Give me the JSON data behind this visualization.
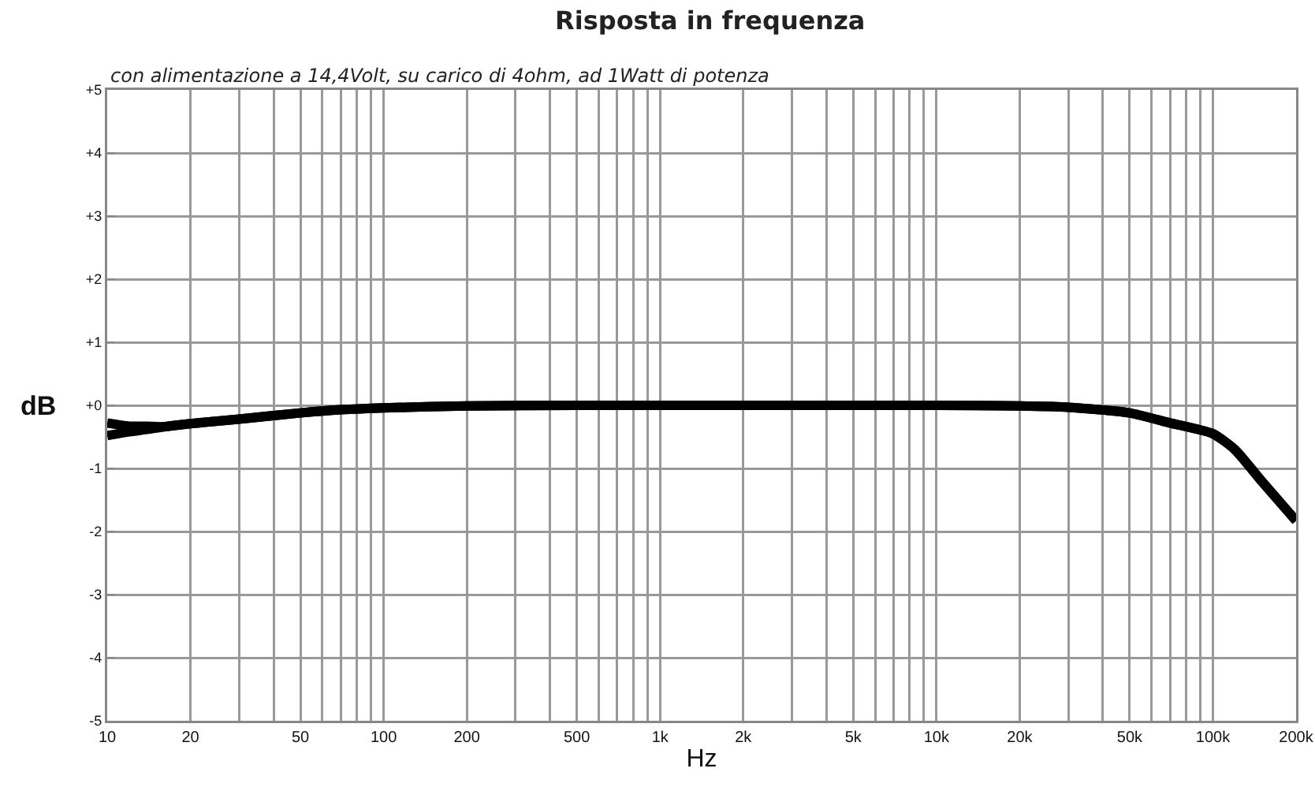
{
  "chart_data": {
    "type": "line",
    "title": "Risposta in frequenza",
    "subtitle": "con alimentazione a 14,4Volt, su carico di 4ohm, ad 1Watt di potenza",
    "xlabel": "Hz",
    "ylabel": "dB",
    "log": "x",
    "grid": true,
    "marker": "none",
    "line_style": "solid",
    "xlim": [
      10,
      200000
    ],
    "ylim": [
      -5,
      5
    ],
    "xticks": [
      10,
      20,
      {
        "value": 30,
        "label": null
      },
      {
        "value": 40,
        "label": null
      },
      50,
      {
        "value": 60,
        "label": null
      },
      {
        "value": 70,
        "label": null
      },
      {
        "value": 80,
        "label": null
      },
      {
        "value": 90,
        "label": null
      },
      100,
      200,
      {
        "value": 300,
        "label": null
      },
      {
        "value": 400,
        "label": null
      },
      500,
      {
        "value": 600,
        "label": null
      },
      {
        "value": 700,
        "label": null
      },
      {
        "value": 800,
        "label": null
      },
      {
        "value": 900,
        "label": null
      },
      {
        "value": 1000,
        "label": "1k"
      },
      {
        "value": 2000,
        "label": "2k"
      },
      {
        "value": 3000,
        "label": null
      },
      {
        "value": 4000,
        "label": null
      },
      {
        "value": 5000,
        "label": "5k"
      },
      {
        "value": 6000,
        "label": null
      },
      {
        "value": 7000,
        "label": null
      },
      {
        "value": 8000,
        "label": null
      },
      {
        "value": 9000,
        "label": null
      },
      {
        "value": 10000,
        "label": "10k"
      },
      {
        "value": 20000,
        "label": "20k"
      },
      {
        "value": 30000,
        "label": null
      },
      {
        "value": 40000,
        "label": null
      },
      {
        "value": 50000,
        "label": "50k"
      },
      {
        "value": 60000,
        "label": null
      },
      {
        "value": 70000,
        "label": null
      },
      {
        "value": 80000,
        "label": null
      },
      {
        "value": 90000,
        "label": null
      },
      {
        "value": 100000,
        "label": "100k"
      },
      {
        "value": 200000,
        "label": "200k"
      }
    ],
    "yticks": [
      {
        "value": -5,
        "label": "-5"
      },
      {
        "value": -4,
        "label": "-4"
      },
      {
        "value": -3,
        "label": "-3"
      },
      {
        "value": -2,
        "label": "-2"
      },
      {
        "value": -1,
        "label": "-1"
      },
      {
        "value": 0,
        "label": "+0"
      },
      {
        "value": 1,
        "label": "+1"
      },
      {
        "value": 2,
        "label": "+2"
      },
      {
        "value": 3,
        "label": "+3"
      },
      {
        "value": 4,
        "label": "+4"
      },
      {
        "value": 5,
        "label": "+5"
      }
    ],
    "series": [
      {
        "color": "#000000",
        "x": [
          10,
          12,
          14,
          16,
          20,
          30,
          50,
          70,
          100,
          200,
          500,
          1000,
          5000,
          10000,
          20000,
          30000,
          50000,
          70000,
          100000,
          120000,
          150000,
          200000
        ],
        "values": [
          -0.28,
          -0.33,
          -0.33,
          -0.34,
          -0.29,
          -0.22,
          -0.12,
          -0.07,
          -0.04,
          -0.01,
          0,
          0,
          0,
          0,
          -0.01,
          -0.03,
          -0.12,
          -0.28,
          -0.45,
          -0.7,
          -1.2,
          -1.83
        ]
      },
      {
        "color": "#000000",
        "x": [
          10,
          12,
          14,
          16,
          20,
          30,
          50,
          70,
          100,
          200,
          500,
          1000,
          5000,
          10000,
          20000,
          30000,
          50000,
          70000,
          100000,
          120000,
          150000,
          200000
        ],
        "values": [
          -0.48,
          -0.42,
          -0.38,
          -0.34,
          -0.29,
          -0.22,
          -0.12,
          -0.07,
          -0.04,
          -0.01,
          0,
          0,
          0,
          0,
          -0.01,
          -0.03,
          -0.12,
          -0.28,
          -0.45,
          -0.7,
          -1.2,
          -1.83
        ]
      }
    ]
  }
}
